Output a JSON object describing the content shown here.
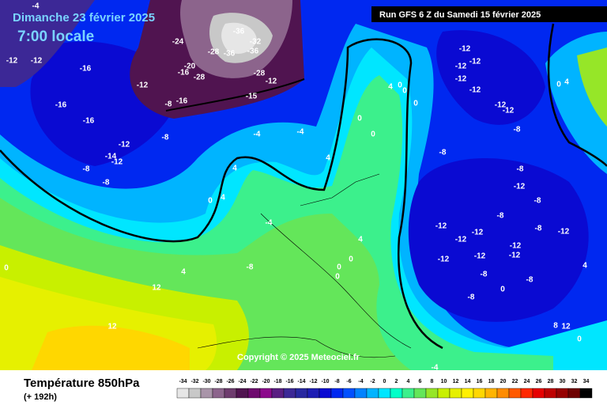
{
  "header": {
    "date": "Dimanche 23 février 2025",
    "time": "7:00 locale",
    "run": "Run GFS 6 Z du Samedi 15 février 2025"
  },
  "map": {
    "copyright": "Copyright © 2025 Meteociel.fr",
    "contour_labels": [
      -4,
      -24,
      -36,
      -32,
      -28,
      -36,
      -36,
      -20,
      -28,
      -16,
      -28,
      -12,
      -15,
      -16,
      -8,
      -12,
      -12,
      -16,
      -12,
      -16,
      -16,
      -12,
      -8,
      -14,
      -12,
      -8,
      -8,
      -4,
      -4,
      4,
      4,
      0,
      4,
      0,
      0,
      4,
      0,
      0,
      0,
      -8,
      -12,
      -12,
      -12,
      -12,
      -12,
      -12,
      -12,
      -8,
      0,
      4,
      -8,
      -12,
      -8,
      -8,
      -12,
      -12,
      -12,
      -12,
      -12,
      -12,
      -12,
      -8,
      -12,
      -8,
      -8,
      -8,
      0,
      4,
      8,
      12,
      0,
      -4,
      4,
      -8,
      12,
      12,
      0,
      0,
      0,
      0,
      -4,
      4
    ]
  },
  "footer": {
    "variable": "Température 850hPa",
    "lead": "(+ 192h)",
    "colorbar": {
      "ticks": [
        -34,
        -32,
        -30,
        -28,
        -26,
        -24,
        -22,
        -20,
        -18,
        -16,
        -14,
        -12,
        -10,
        -8,
        -6,
        -4,
        -2,
        0,
        2,
        4,
        6,
        8,
        10,
        12,
        14,
        16,
        18,
        20,
        22,
        24,
        26,
        28,
        30,
        32,
        34
      ],
      "colors": [
        "#e6e6e6",
        "#c8c8c8",
        "#a995a9",
        "#8c648c",
        "#6e3c6e",
        "#501450",
        "#6e0a6e",
        "#8c0a8c",
        "#5a1e82",
        "#3c2896",
        "#2828a0",
        "#1e1eb4",
        "#0a0ad2",
        "#0028f0",
        "#0050ff",
        "#0082ff",
        "#00b4ff",
        "#00e6ff",
        "#00ffc8",
        "#3cf08c",
        "#64e65a",
        "#96e628",
        "#c8f000",
        "#e6f000",
        "#fff000",
        "#ffd700",
        "#ffb400",
        "#ff8c00",
        "#ff5a00",
        "#ff2800",
        "#e60000",
        "#be0000",
        "#960000",
        "#6e0000",
        "#000000"
      ]
    }
  }
}
